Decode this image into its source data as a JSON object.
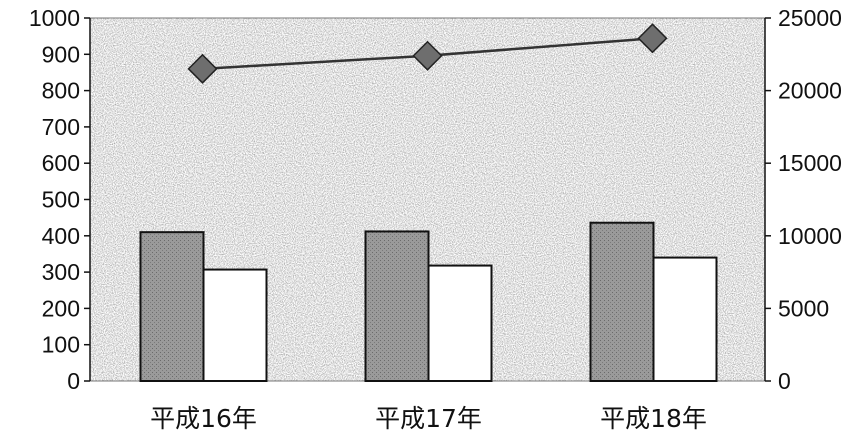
{
  "chart_data": {
    "type": "bar",
    "categories": [
      "平成16年",
      "平成17年",
      "平成18年"
    ],
    "series": [
      {
        "type": "bar",
        "axis": "left",
        "fill": "#8f8f8f",
        "values": [
          410,
          412,
          436
        ]
      },
      {
        "type": "bar",
        "axis": "left",
        "fill": "#ffffff",
        "values": [
          307,
          318,
          340
        ]
      },
      {
        "type": "line",
        "axis": "right",
        "marker": "diamond",
        "fill": "#6e6e6e",
        "values": [
          21500,
          22400,
          23600
        ]
      }
    ],
    "y_left": {
      "min": 0,
      "max": 1000,
      "ticks": [
        "0",
        "100",
        "200",
        "300",
        "400",
        "500",
        "600",
        "700",
        "800",
        "900",
        "1000"
      ]
    },
    "y_right": {
      "min": 0,
      "max": 25000,
      "ticks": [
        "0",
        "5000",
        "10000",
        "15000",
        "20000",
        "25000"
      ]
    },
    "title": "",
    "xlabel": "",
    "ylabel": "",
    "grid": false,
    "legend": "none",
    "plot_background": "#dcdcdc"
  }
}
